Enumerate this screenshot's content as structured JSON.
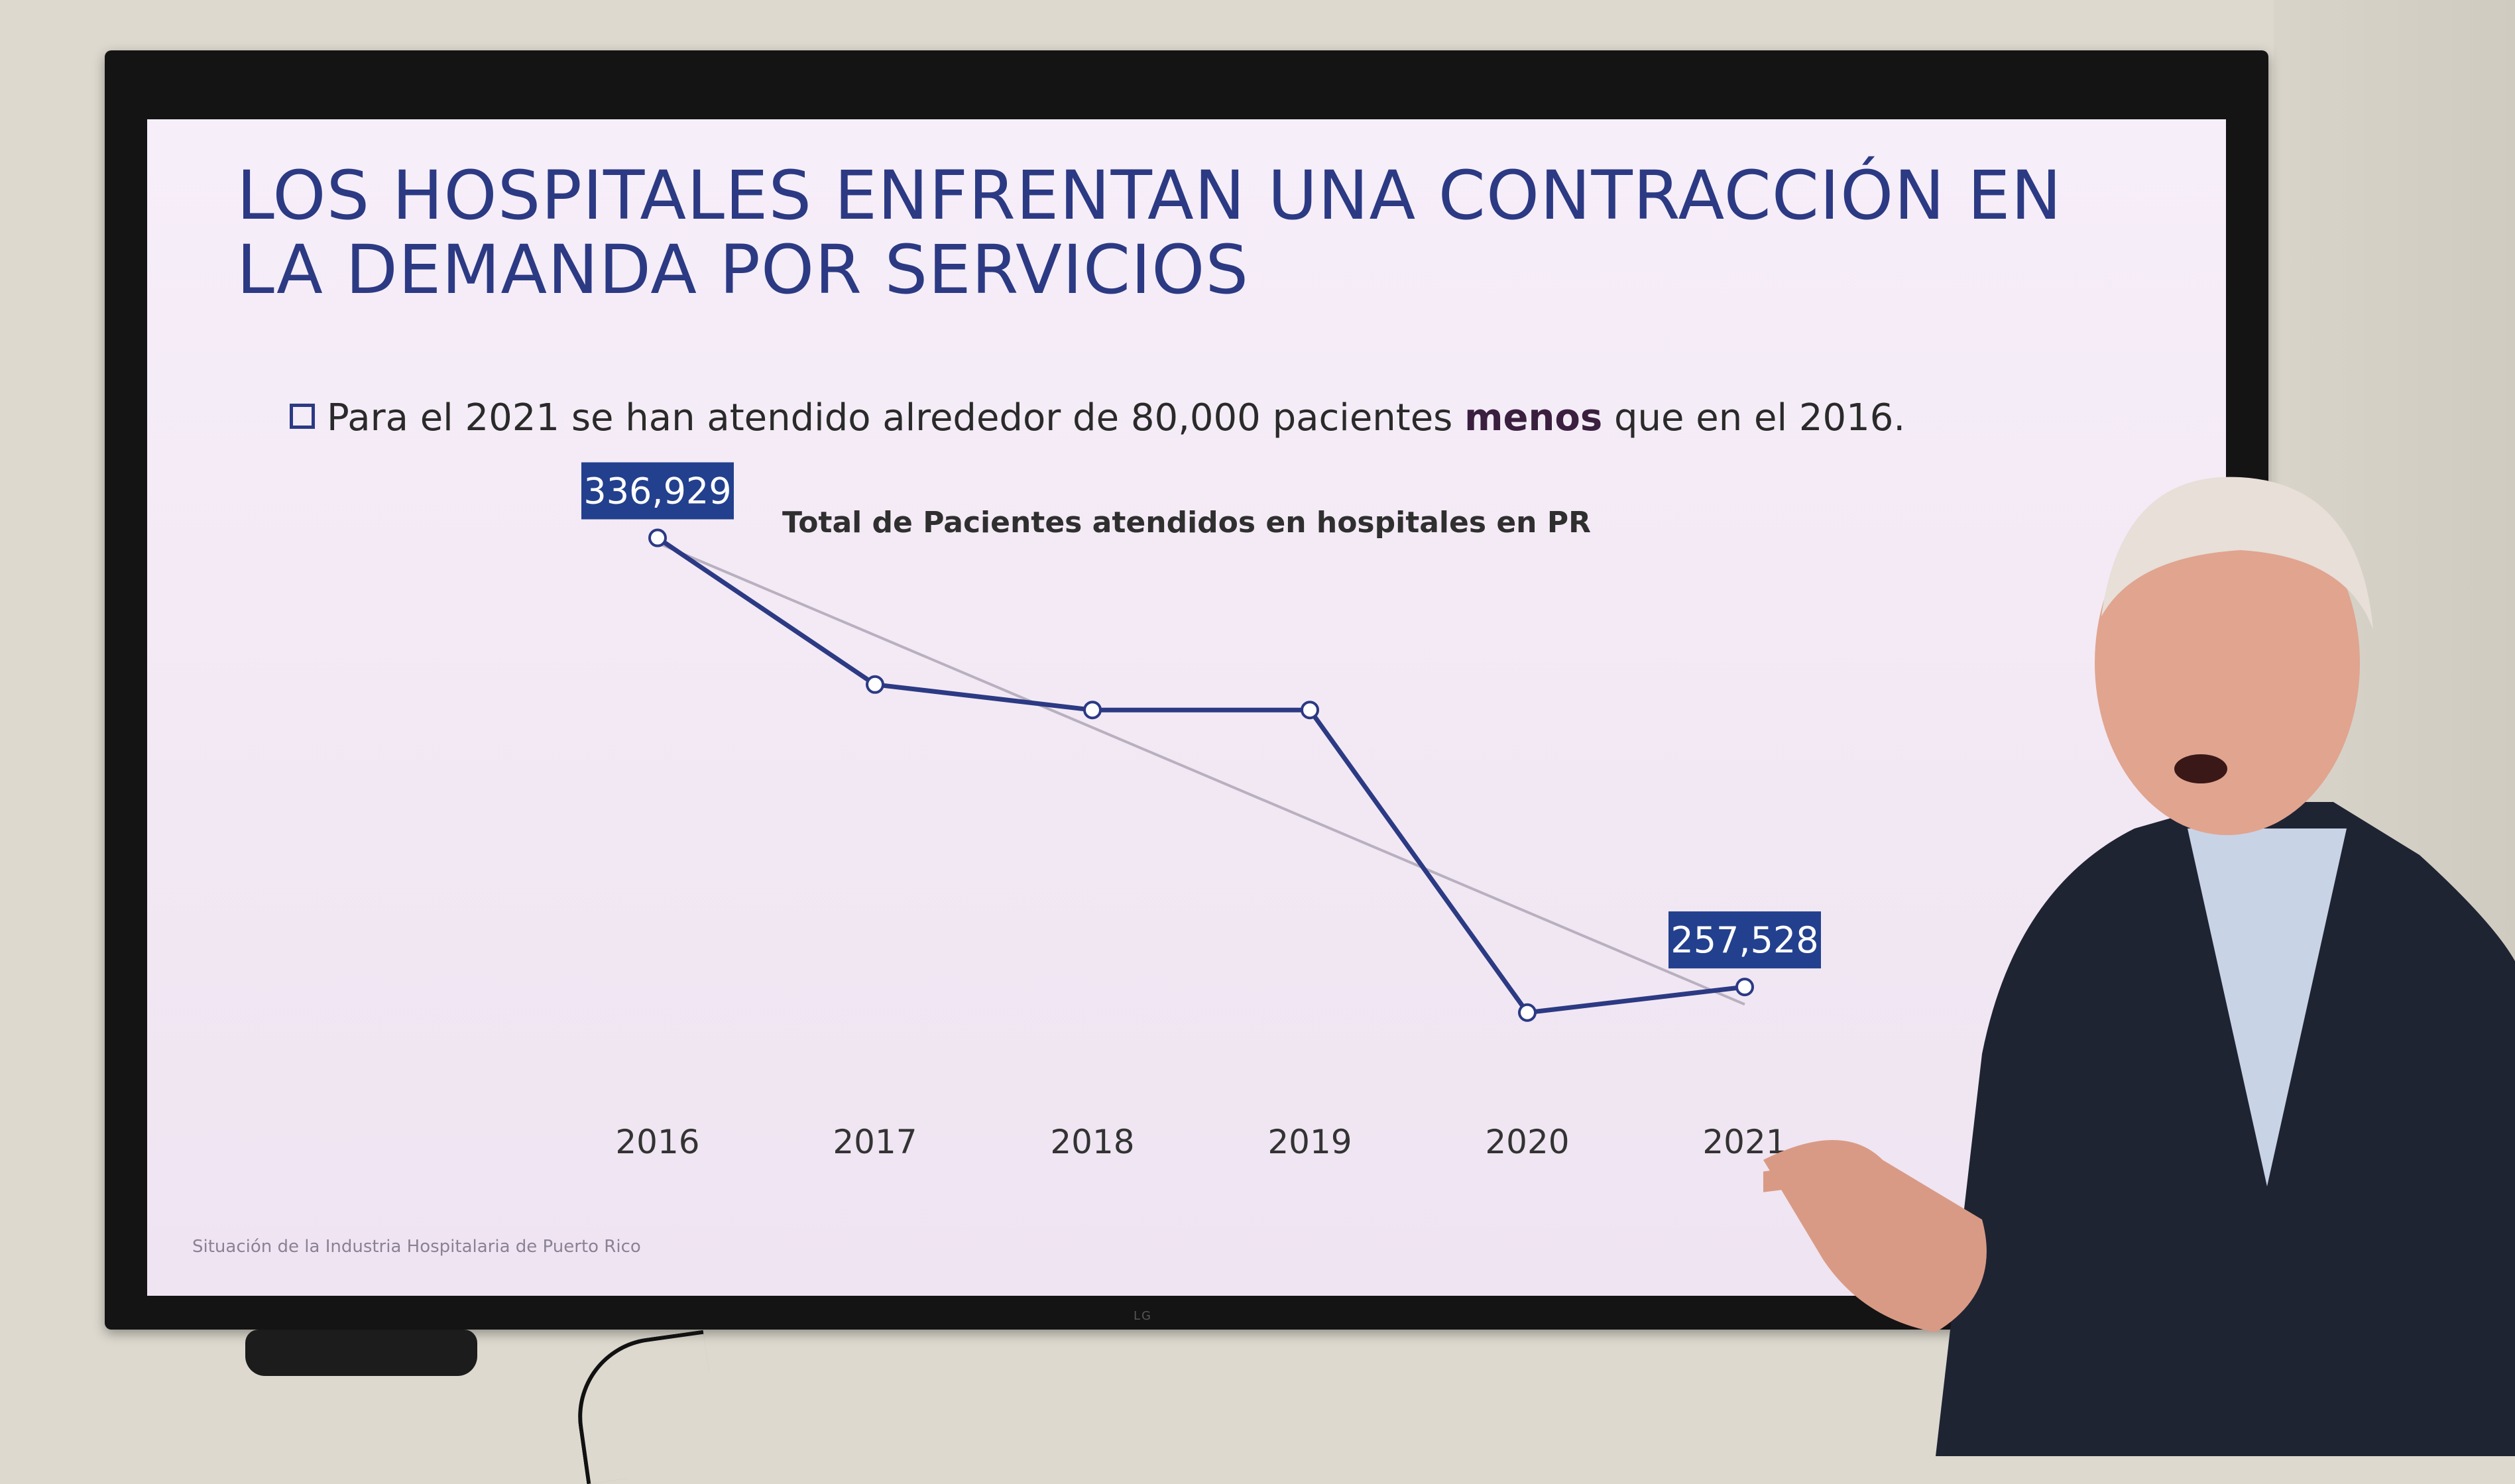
{
  "slide": {
    "title_line1": "LOS HOSPITALES ENFRENTAN UNA CONTRACCIÓN EN",
    "title_line2": "LA DEMANDA POR SERVICIOS",
    "bullet_before": "Para el 2021 se han atendido alrededor de 80,000 pacientes ",
    "bullet_bold": "menos",
    "bullet_after": " que en el 2016.",
    "footer": "Situación de la Industria Hospitalaria de Puerto Rico"
  },
  "tv": {
    "brand": "LG"
  },
  "colors": {
    "title": "#2c3a84",
    "line": "#2c3a84",
    "label_bg": "#23408e",
    "trendline": "#b8b0bf"
  },
  "chart_data": {
    "type": "line",
    "title": "Total de Pacientes atendidos en hospitales en PR",
    "x": [
      "2016",
      "2017",
      "2018",
      "2019",
      "2020",
      "2021"
    ],
    "series": [
      {
        "values": [
          336929,
          311000,
          306500,
          306500,
          253000,
          257528
        ]
      }
    ],
    "data_labels": [
      {
        "index": 0,
        "text": "336,929"
      },
      {
        "index": 5,
        "text": "257,528"
      }
    ],
    "trendline": "linear",
    "markers": "open-circle",
    "ylim": [
      200000,
      350000
    ],
    "grid": false,
    "legend": "none",
    "y_axis_visible": false
  }
}
